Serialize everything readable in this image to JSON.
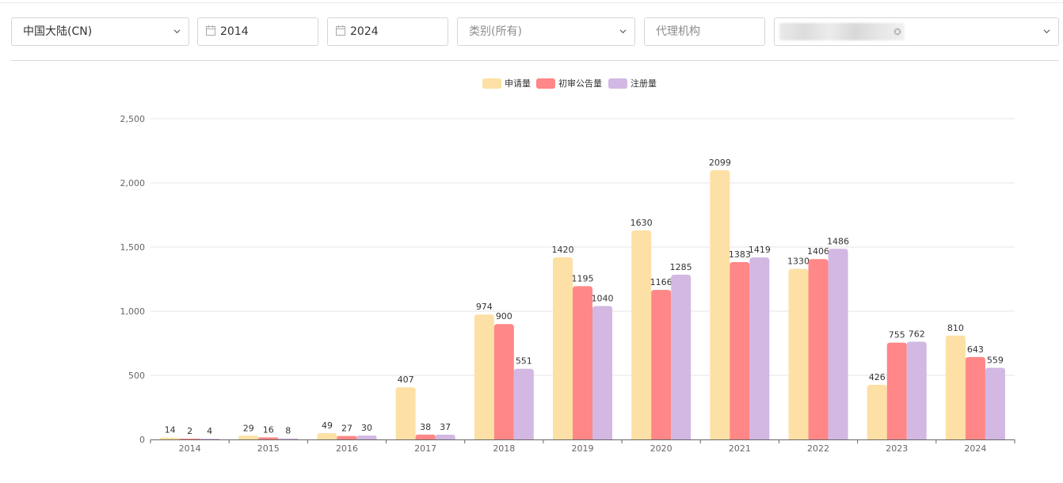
{
  "filters": {
    "region": "中国大陆(CN)",
    "start_year": "2014",
    "end_year": "2024",
    "category_placeholder": "类别(所有)",
    "agency_placeholder": "代理机构",
    "selected_tag": "",
    "icons": {
      "region": "chevron-down-icon",
      "date": "calendar-icon",
      "category": "chevron-down-icon",
      "tag_close": "close-icon",
      "tag_select": "chevron-down-icon"
    }
  },
  "chart_data": {
    "type": "bar",
    "categories": [
      "2014",
      "2015",
      "2016",
      "2017",
      "2018",
      "2019",
      "2020",
      "2021",
      "2022",
      "2023",
      "2024"
    ],
    "series": [
      {
        "name": "申请量",
        "color": "#fde0a5",
        "values": [
          14,
          29,
          49,
          407,
          974,
          1420,
          1630,
          2099,
          1330,
          426,
          810
        ]
      },
      {
        "name": "初审公告量",
        "color": "#ff8787",
        "values": [
          2,
          16,
          27,
          38,
          900,
          1195,
          1166,
          1383,
          1406,
          755,
          643
        ]
      },
      {
        "name": "注册量",
        "color": "#d2b8e3",
        "values": [
          4,
          8,
          30,
          37,
          551,
          1040,
          1285,
          1419,
          1486,
          762,
          559
        ]
      }
    ],
    "yticks": [
      "0",
      "500",
      "1,000",
      "1,500",
      "2,000",
      "2,500"
    ],
    "ylim": [
      0,
      2500
    ],
    "grid": true,
    "legend_position": "top-center"
  }
}
